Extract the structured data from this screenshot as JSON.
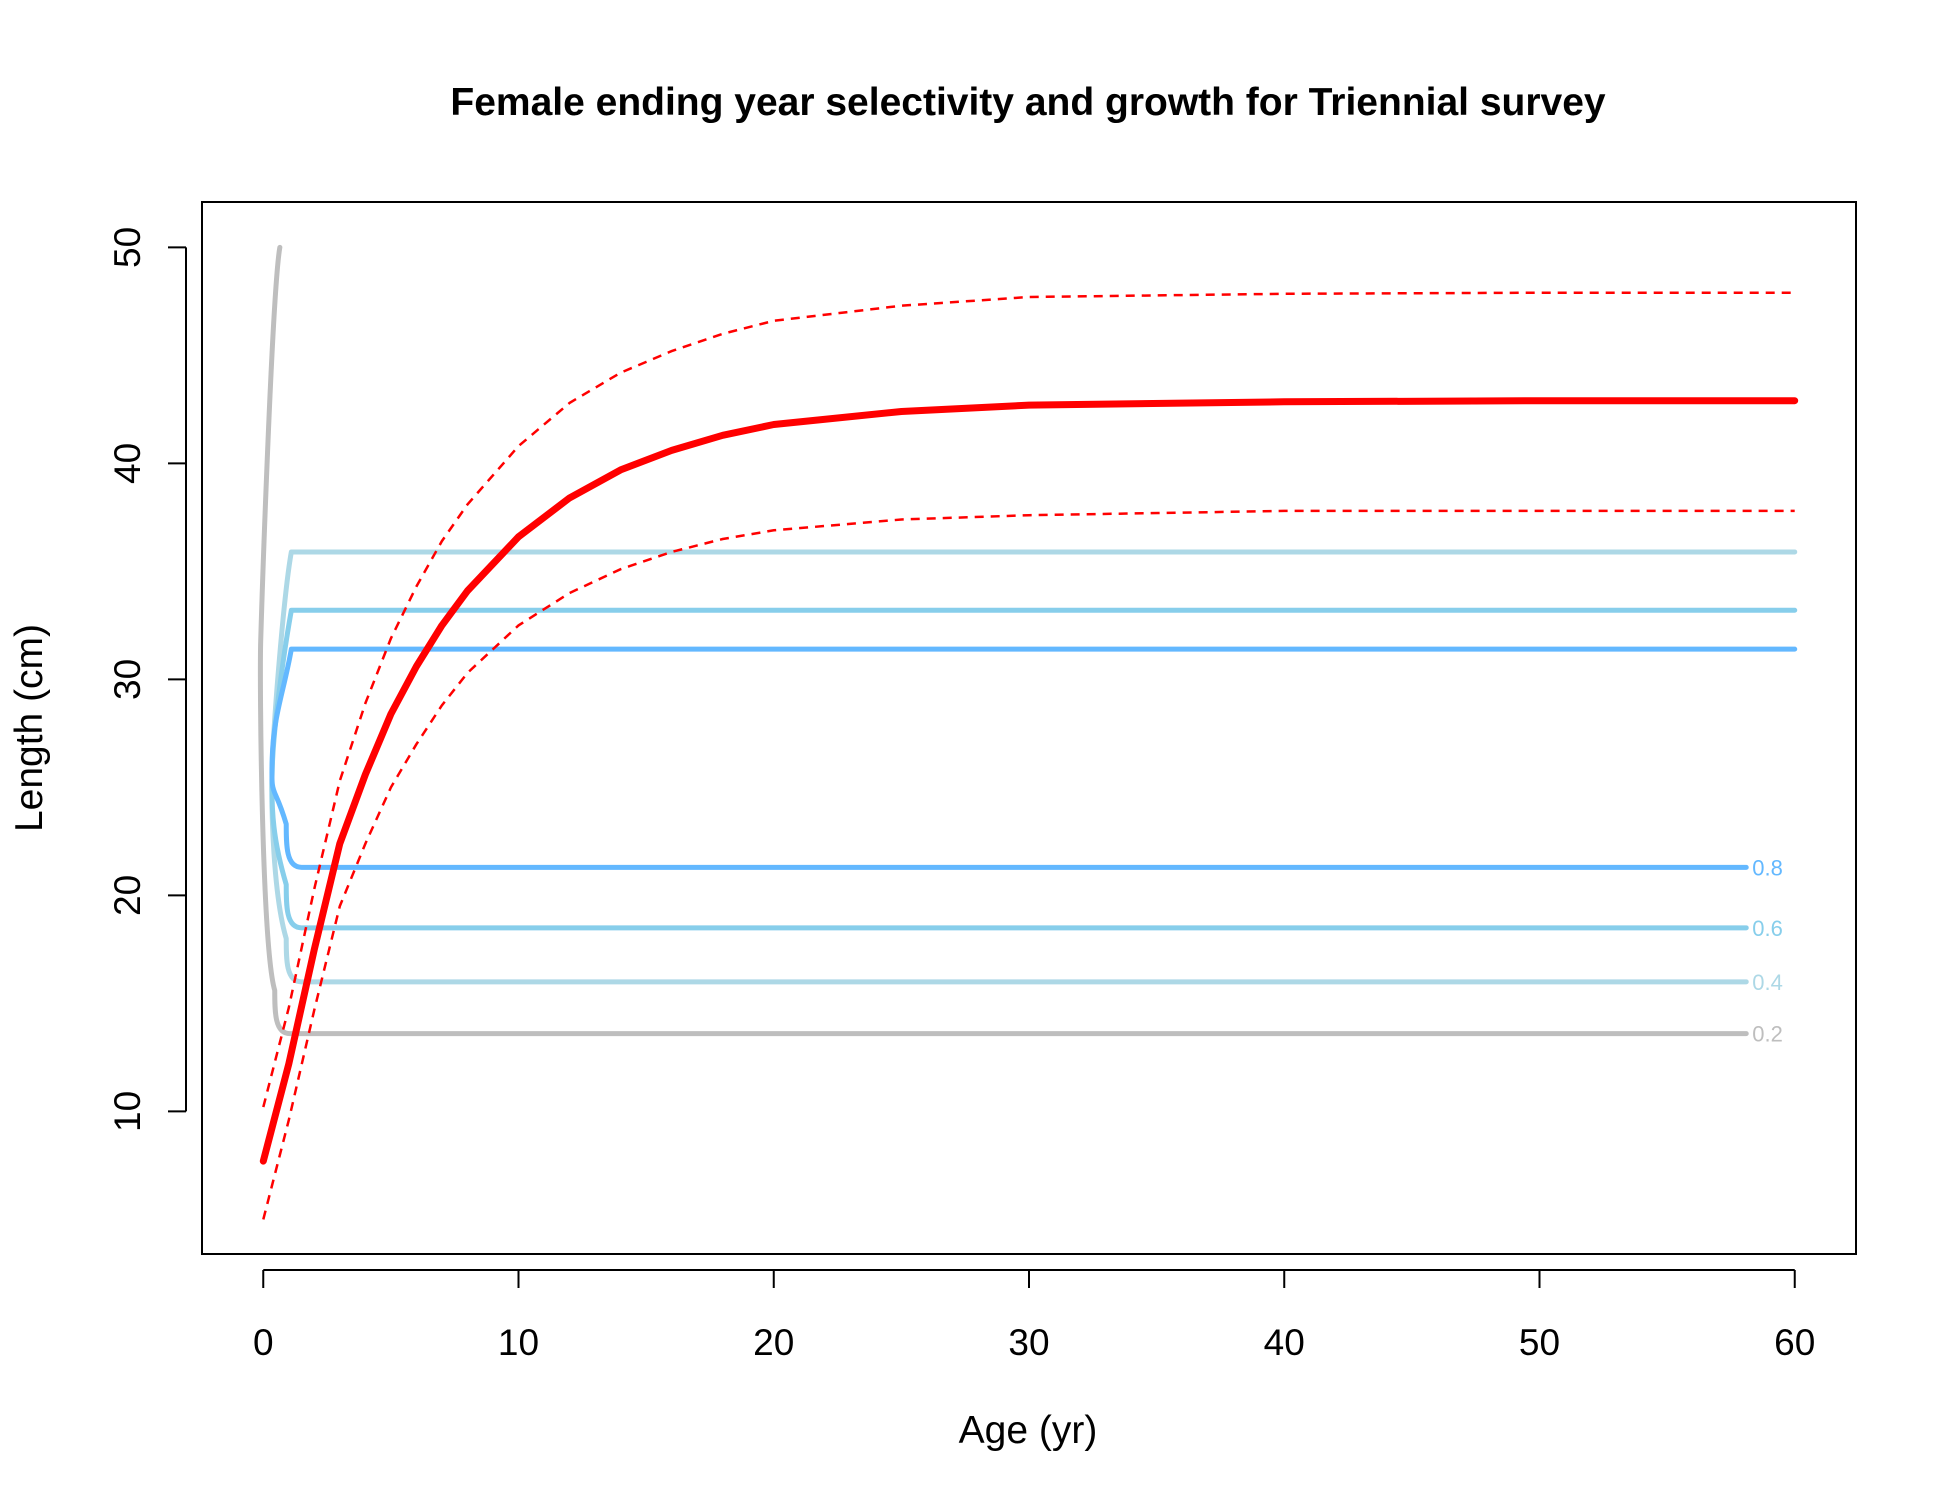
{
  "chart_data": {
    "type": "line",
    "title": "Female ending year selectivity and growth for Triennial survey",
    "xlabel": "Age (yr)",
    "ylabel": "Length (cm)",
    "xlim": [
      -2.4,
      62.4
    ],
    "ylim": [
      3.4,
      52.1
    ],
    "x_ticks": [
      0,
      10,
      20,
      30,
      40,
      50,
      60
    ],
    "y_ticks": [
      10,
      20,
      30,
      40,
      50
    ],
    "x_tick_labels": [
      "0",
      "10",
      "20",
      "30",
      "40",
      "50",
      "60"
    ],
    "y_tick_labels": [
      "10",
      "20",
      "30",
      "40",
      "50"
    ],
    "grid": false,
    "legend": "none",
    "growth": {
      "color": "#ff0000",
      "mean": [
        [
          0,
          7.7
        ],
        [
          1,
          12.2
        ],
        [
          2,
          17.5
        ],
        [
          3,
          22.4
        ],
        [
          4,
          25.6
        ],
        [
          5,
          28.4
        ],
        [
          6,
          30.6
        ],
        [
          7,
          32.5
        ],
        [
          8,
          34.1
        ],
        [
          10,
          36.6
        ],
        [
          12,
          38.4
        ],
        [
          14,
          39.7
        ],
        [
          16,
          40.6
        ],
        [
          18,
          41.3
        ],
        [
          20,
          41.8
        ],
        [
          25,
          42.4
        ],
        [
          30,
          42.7
        ],
        [
          40,
          42.85
        ],
        [
          50,
          42.9
        ],
        [
          60,
          42.9
        ]
      ],
      "upper": [
        [
          0,
          10.2
        ],
        [
          1,
          14.8
        ],
        [
          2,
          20.3
        ],
        [
          3,
          25.3
        ],
        [
          4,
          28.9
        ],
        [
          5,
          31.9
        ],
        [
          6,
          34.3
        ],
        [
          7,
          36.4
        ],
        [
          8,
          38.1
        ],
        [
          10,
          40.8
        ],
        [
          12,
          42.8
        ],
        [
          14,
          44.2
        ],
        [
          16,
          45.2
        ],
        [
          18,
          46.0
        ],
        [
          20,
          46.6
        ],
        [
          25,
          47.3
        ],
        [
          30,
          47.7
        ],
        [
          40,
          47.85
        ],
        [
          50,
          47.9
        ],
        [
          60,
          47.9
        ]
      ],
      "lower": [
        [
          0,
          5.0
        ],
        [
          1,
          9.6
        ],
        [
          2,
          14.7
        ],
        [
          3,
          19.5
        ],
        [
          4,
          22.4
        ],
        [
          5,
          25.0
        ],
        [
          6,
          27.0
        ],
        [
          7,
          28.8
        ],
        [
          8,
          30.3
        ],
        [
          10,
          32.5
        ],
        [
          12,
          34.0
        ],
        [
          14,
          35.1
        ],
        [
          16,
          35.9
        ],
        [
          18,
          36.5
        ],
        [
          20,
          36.9
        ],
        [
          25,
          37.4
        ],
        [
          30,
          37.6
        ],
        [
          40,
          37.8
        ],
        [
          50,
          37.8
        ],
        [
          60,
          37.8
        ]
      ]
    },
    "selectivity_contours": [
      {
        "level": "0.2",
        "color": "#bebebe",
        "lower": 13.6,
        "upper": 50.0,
        "xmax": 0.65,
        "label_y": 13.6
      },
      {
        "level": "0.4",
        "color": "#add8e6",
        "lower": 16.0,
        "upper": 35.9,
        "xmax": 1.1,
        "label_y": 16.0
      },
      {
        "level": "0.6",
        "color": "#87ceeb",
        "lower": 18.5,
        "upper": 33.2,
        "xmax": 1.1,
        "label_y": 18.5
      },
      {
        "level": "0.8",
        "color": "#63b8ff",
        "lower": 21.3,
        "upper": 31.4,
        "xmax": 1.1,
        "label_y": 21.3
      }
    ]
  }
}
